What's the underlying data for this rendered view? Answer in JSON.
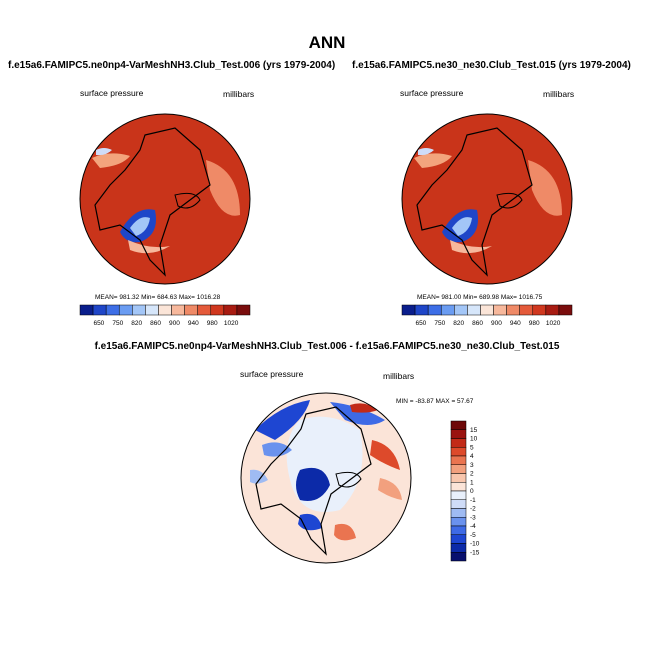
{
  "figure_title": "ANN",
  "colors": {
    "abs_scale": [
      "#0a1e8c",
      "#1f46c8",
      "#3d6ee6",
      "#6a9cf2",
      "#a3c6f7",
      "#d6e6fa",
      "#fbe5d8",
      "#f7b89c",
      "#ef8a67",
      "#e45a3a",
      "#d0381f",
      "#a81c12",
      "#7a0d0d"
    ],
    "diff_scale": [
      "#08106e",
      "#0c2aa8",
      "#1e46d2",
      "#3e6ae6",
      "#6a92ee",
      "#9fbbf3",
      "#cfdcf8",
      "#e9f0fb",
      "#fbe4d8",
      "#f8c6ad",
      "#f2a07e",
      "#ea7450",
      "#dd4a2b",
      "#c22a18",
      "#9a120f",
      "#6e0808"
    ]
  },
  "chart_data": [
    {
      "type": "heatmap",
      "projection": "north-polar-stereographic",
      "title": "f.e15a6.FAMIPC5.ne0np4-VarMeshNH3.Club_Test.006 (yrs 1979-2004)",
      "variable": "surface pressure",
      "units": "millibars",
      "stats": {
        "mean": 981.32,
        "min": 684.63,
        "max": 1016.28
      },
      "stats_text": "MEAN= 981.32  Min= 684.63  Max= 1016.28",
      "colorbar": {
        "orientation": "horizontal",
        "levels": [
          650,
          750,
          820,
          860,
          900,
          940,
          980,
          1020
        ],
        "tick_labels": [
          "650",
          "750",
          "820",
          "860",
          "900",
          "940",
          "980",
          "1020"
        ]
      }
    },
    {
      "type": "heatmap",
      "projection": "north-polar-stereographic",
      "title": "f.e15a6.FAMIPC5.ne30_ne30.Club_Test.015 (yrs 1979-2004)",
      "variable": "surface pressure",
      "units": "millibars",
      "stats": {
        "mean": 981.0,
        "min": 689.98,
        "max": 1016.75
      },
      "stats_text": "MEAN= 981.00  Min= 689.98  Max= 1016.75",
      "colorbar": {
        "orientation": "horizontal",
        "levels": [
          650,
          750,
          820,
          860,
          900,
          940,
          980,
          1020
        ],
        "tick_labels": [
          "650",
          "750",
          "820",
          "860",
          "900",
          "940",
          "980",
          "1020"
        ]
      }
    },
    {
      "type": "heatmap",
      "projection": "north-polar-stereographic",
      "title": "f.e15a6.FAMIPC5.ne0np4-VarMeshNH3.Club_Test.006 - f.e15a6.FAMIPC5.ne30_ne30.Club_Test.015",
      "variable": "surface pressure",
      "units": "millibars",
      "stats": {
        "min": -83.87,
        "max": 57.67
      },
      "stats_text": "MIN = -83.87  MAX =  57.67",
      "colorbar": {
        "orientation": "vertical",
        "tick_labels": [
          "15",
          "10",
          "5",
          "4",
          "3",
          "2",
          "1",
          "0",
          "-1",
          "-2",
          "-3",
          "-4",
          "-5",
          "-10",
          "-15"
        ]
      }
    }
  ]
}
